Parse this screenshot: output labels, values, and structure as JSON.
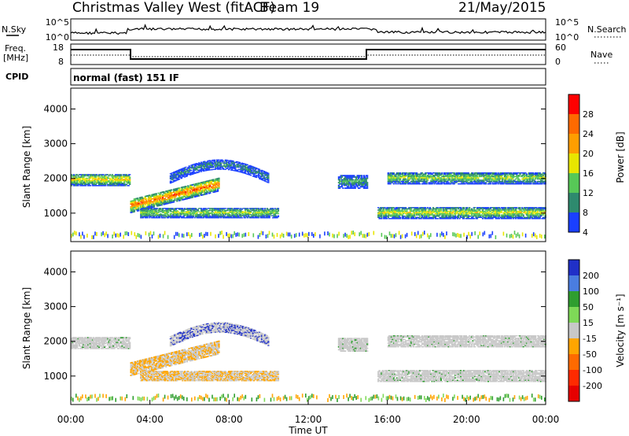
{
  "header": {
    "station": "Christmas Valley West (fitACF)",
    "beam": "Beam 19",
    "date": "21/May/2015"
  },
  "noise_panel": {
    "left_label": "N.Sky",
    "left_ticks": [
      "10^5",
      "10^0"
    ],
    "right_ticks": [
      "10^5",
      "10^0"
    ],
    "right_label": "N.Search"
  },
  "freq_panel": {
    "left_label_1": "Freq.",
    "left_label_2": "[MHz]",
    "left_ticks": [
      "18",
      "8"
    ],
    "right_ticks": [
      "60",
      "0"
    ],
    "right_label": "Nave"
  },
  "cpid_panel": {
    "label": "CPID",
    "text": "normal (fast) 151 IF"
  },
  "chart_data": [
    {
      "type": "heatmap",
      "name": "power",
      "ylabel": "Slant Range [km]",
      "xlabel": "Time UT",
      "xlim": [
        0,
        24
      ],
      "ylim": [
        180,
        4600
      ],
      "yticks": [
        "4000",
        "3000",
        "2000",
        "1000"
      ],
      "ytick_values": [
        4000,
        3000,
        2000,
        1000
      ],
      "colorbar_label": "Power [dB]",
      "colorbar_ticks": [
        "28",
        "24",
        "20",
        "16",
        "12",
        "8",
        "4"
      ],
      "colorbar_colors": [
        "#ff0000",
        "#ff6a00",
        "#ff9e00",
        "#e8e600",
        "#57c857",
        "#2e8a6e",
        "#1a3fff"
      ],
      "background": "#ffffff",
      "bands_y_time_hours": [
        {
          "t0": 0,
          "t1": 3,
          "range_center_km": 1950,
          "width_km": 350,
          "level": 18
        },
        {
          "t0": 3,
          "t1": 7.5,
          "range_center_km": 1400,
          "width_km": 400,
          "level": 24
        },
        {
          "t0": 3.5,
          "t1": 10.5,
          "range_center_km": 1000,
          "width_km": 300,
          "level": 14
        },
        {
          "t0": 5,
          "t1": 10,
          "range_center_km": 2300,
          "width_km": 300,
          "level": 8
        },
        {
          "t0": 13.5,
          "t1": 15,
          "range_center_km": 1900,
          "width_km": 400,
          "level": 10
        },
        {
          "t0": 15.5,
          "t1": 24,
          "range_center_km": 1000,
          "width_km": 350,
          "level": 16
        },
        {
          "t0": 16,
          "t1": 24,
          "range_center_km": 2000,
          "width_km": 350,
          "level": 14
        }
      ]
    },
    {
      "type": "heatmap",
      "name": "velocity",
      "ylabel": "Slant Range [km]",
      "xlabel": "Time UT",
      "xlim": [
        0,
        24
      ],
      "ylim": [
        180,
        4600
      ],
      "yticks": [
        "4000",
        "3000",
        "2000",
        "1000"
      ],
      "ytick_values": [
        4000,
        3000,
        2000,
        1000
      ],
      "colorbar_label": "Velocity [m s⁻¹]",
      "colorbar_ticks": [
        "200",
        "100",
        "50",
        "15",
        "-15",
        "-50",
        "-100",
        "-200"
      ],
      "colorbar_colors": [
        "#2030c8",
        "#4a7de0",
        "#2f9e2f",
        "#7ed957",
        "#c8c8c8",
        "#ffa500",
        "#ff6a00",
        "#ff2a00",
        "#e60000"
      ],
      "background": "#ffffff"
    }
  ],
  "x_axis": {
    "ticks": [
      "00:00",
      "04:00",
      "08:00",
      "12:00",
      "16:00",
      "20:00",
      "00:00"
    ],
    "tick_values_hours": [
      0,
      4,
      8,
      12,
      16,
      20,
      24
    ],
    "label": "Time UT"
  }
}
